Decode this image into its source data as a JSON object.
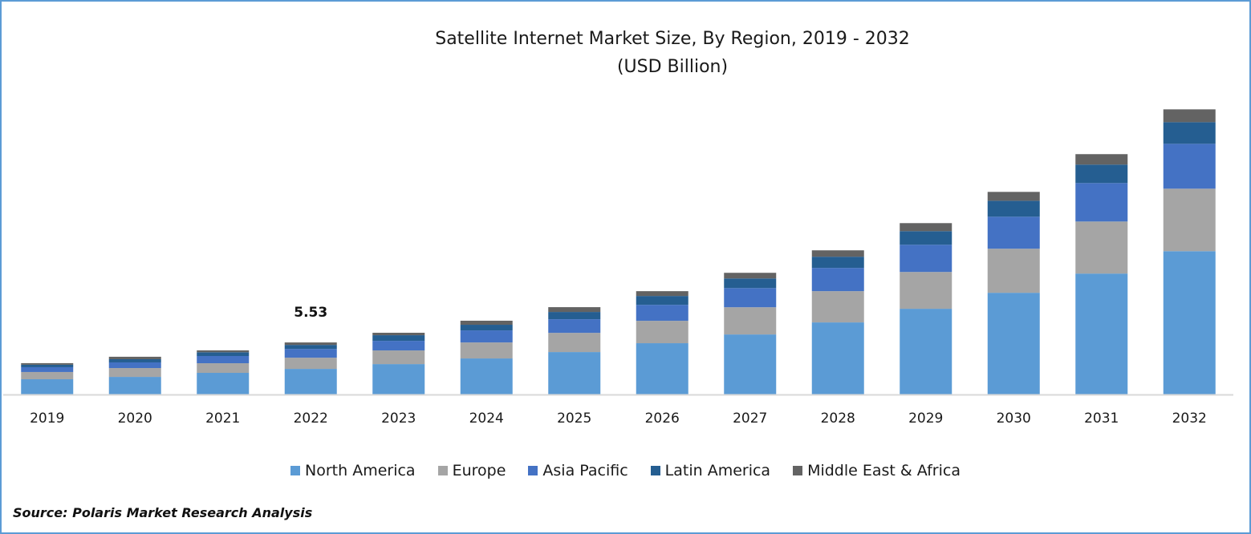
{
  "chart_data": {
    "type": "bar",
    "stacked": true,
    "title": "Satellite Internet Market Size, By Region, 2019 - 2032",
    "subtitle": "(USD Billion)",
    "xlabel": "",
    "ylabel": "",
    "ylim": [
      0,
      33.4
    ],
    "grid": false,
    "y_axis_visible": false,
    "legend_position": "bottom",
    "categories": [
      "2019",
      "2020",
      "2021",
      "2022",
      "2023",
      "2024",
      "2025",
      "2026",
      "2027",
      "2028",
      "2029",
      "2030",
      "2031",
      "2032"
    ],
    "series": [
      {
        "name": "North America",
        "color": "#5B9BD5",
        "values": [
          1.62,
          1.87,
          2.3,
          2.72,
          3.23,
          3.83,
          4.51,
          5.45,
          6.38,
          7.66,
          9.11,
          10.81,
          12.85,
          15.23
        ]
      },
      {
        "name": "Europe",
        "color": "#A5A5A5",
        "values": [
          0.77,
          0.94,
          1.02,
          1.19,
          1.45,
          1.7,
          2.04,
          2.38,
          2.89,
          3.32,
          3.91,
          4.68,
          5.53,
          6.64
        ]
      },
      {
        "name": "Asia Pacific",
        "color": "#4472C4",
        "values": [
          0.51,
          0.6,
          0.77,
          0.93,
          1.02,
          1.28,
          1.45,
          1.7,
          2.04,
          2.47,
          2.89,
          3.4,
          4.09,
          4.77
        ]
      },
      {
        "name": "Latin America",
        "color": "#255E91",
        "values": [
          0.26,
          0.34,
          0.4,
          0.43,
          0.6,
          0.6,
          0.77,
          0.94,
          1.02,
          1.19,
          1.45,
          1.7,
          1.96,
          2.3
        ]
      },
      {
        "name": "Middle East & Africa",
        "color": "#636363",
        "values": [
          0.17,
          0.26,
          0.2,
          0.26,
          0.26,
          0.43,
          0.51,
          0.51,
          0.6,
          0.68,
          0.85,
          0.94,
          1.11,
          1.36
        ]
      }
    ],
    "annotations": [
      {
        "category": "2022",
        "text": "5.53"
      }
    ]
  },
  "source": "Source: Polaris Market Research Analysis"
}
